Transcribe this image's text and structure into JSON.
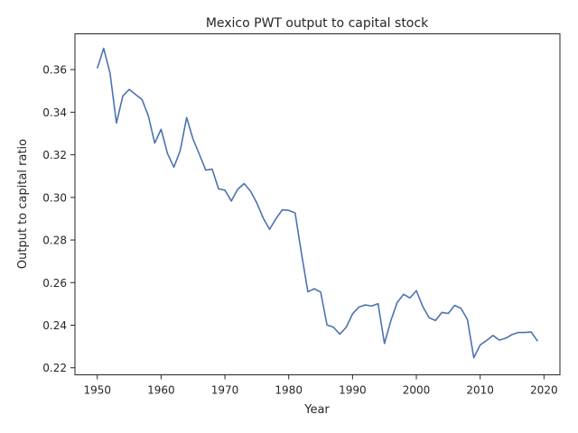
{
  "chart_data": {
    "type": "line",
    "title": "Mexico PWT output to capital stock",
    "xlabel": "Year",
    "ylabel": "Output to capital ratio",
    "xlim": [
      1946.5,
      2022.5
    ],
    "ylim": [
      0.2167,
      0.3768
    ],
    "xticks": [
      1950,
      1960,
      1970,
      1980,
      1990,
      2000,
      2010,
      2020
    ],
    "xtick_labels": [
      "1950",
      "1960",
      "1970",
      "1980",
      "1990",
      "2000",
      "2010",
      "2020"
    ],
    "yticks": [
      0.22,
      0.24,
      0.26,
      0.28,
      0.3,
      0.32,
      0.34,
      0.36
    ],
    "ytick_labels": [
      "0.22",
      "0.24",
      "0.26",
      "0.28",
      "0.30",
      "0.32",
      "0.34",
      "0.36"
    ],
    "grid": false,
    "color": "#4c72b0",
    "series": [
      {
        "x": [
          1950,
          1951,
          1952,
          1953,
          1954,
          1955,
          1956,
          1957,
          1958,
          1959,
          1960,
          1961,
          1962,
          1963,
          1964,
          1965,
          1966,
          1967,
          1968,
          1969,
          1970,
          1971,
          1972,
          1973,
          1974,
          1975,
          1976,
          1977,
          1978,
          1979,
          1980,
          1981,
          1982,
          1983,
          1984,
          1985,
          1986,
          1987,
          1988,
          1989,
          1990,
          1991,
          1992,
          1993,
          1994,
          1995,
          1996,
          1997,
          1998,
          1999,
          2000,
          2001,
          2002,
          2003,
          2004,
          2005,
          2006,
          2007,
          2008,
          2009,
          2010,
          2011,
          2012,
          2013,
          2014,
          2015,
          2016,
          2017,
          2018,
          2019
        ],
        "values": [
          0.3606,
          0.37,
          0.3583,
          0.3349,
          0.3476,
          0.3507,
          0.3483,
          0.346,
          0.3383,
          0.3255,
          0.332,
          0.3206,
          0.3142,
          0.322,
          0.3375,
          0.3274,
          0.3202,
          0.3128,
          0.3133,
          0.304,
          0.3034,
          0.2983,
          0.3038,
          0.3065,
          0.303,
          0.2974,
          0.2903,
          0.285,
          0.29,
          0.2942,
          0.2939,
          0.2927,
          0.2736,
          0.2557,
          0.2571,
          0.2556,
          0.2401,
          0.2391,
          0.2358,
          0.239,
          0.2453,
          0.2485,
          0.2495,
          0.249,
          0.2501,
          0.2314,
          0.2421,
          0.2507,
          0.2545,
          0.2528,
          0.2562,
          0.2488,
          0.2435,
          0.2422,
          0.246,
          0.2455,
          0.2493,
          0.2479,
          0.2427,
          0.2247,
          0.2307,
          0.2328,
          0.2352,
          0.233,
          0.2339,
          0.2356,
          0.2366,
          0.2366,
          0.2368,
          0.2325
        ]
      }
    ]
  }
}
